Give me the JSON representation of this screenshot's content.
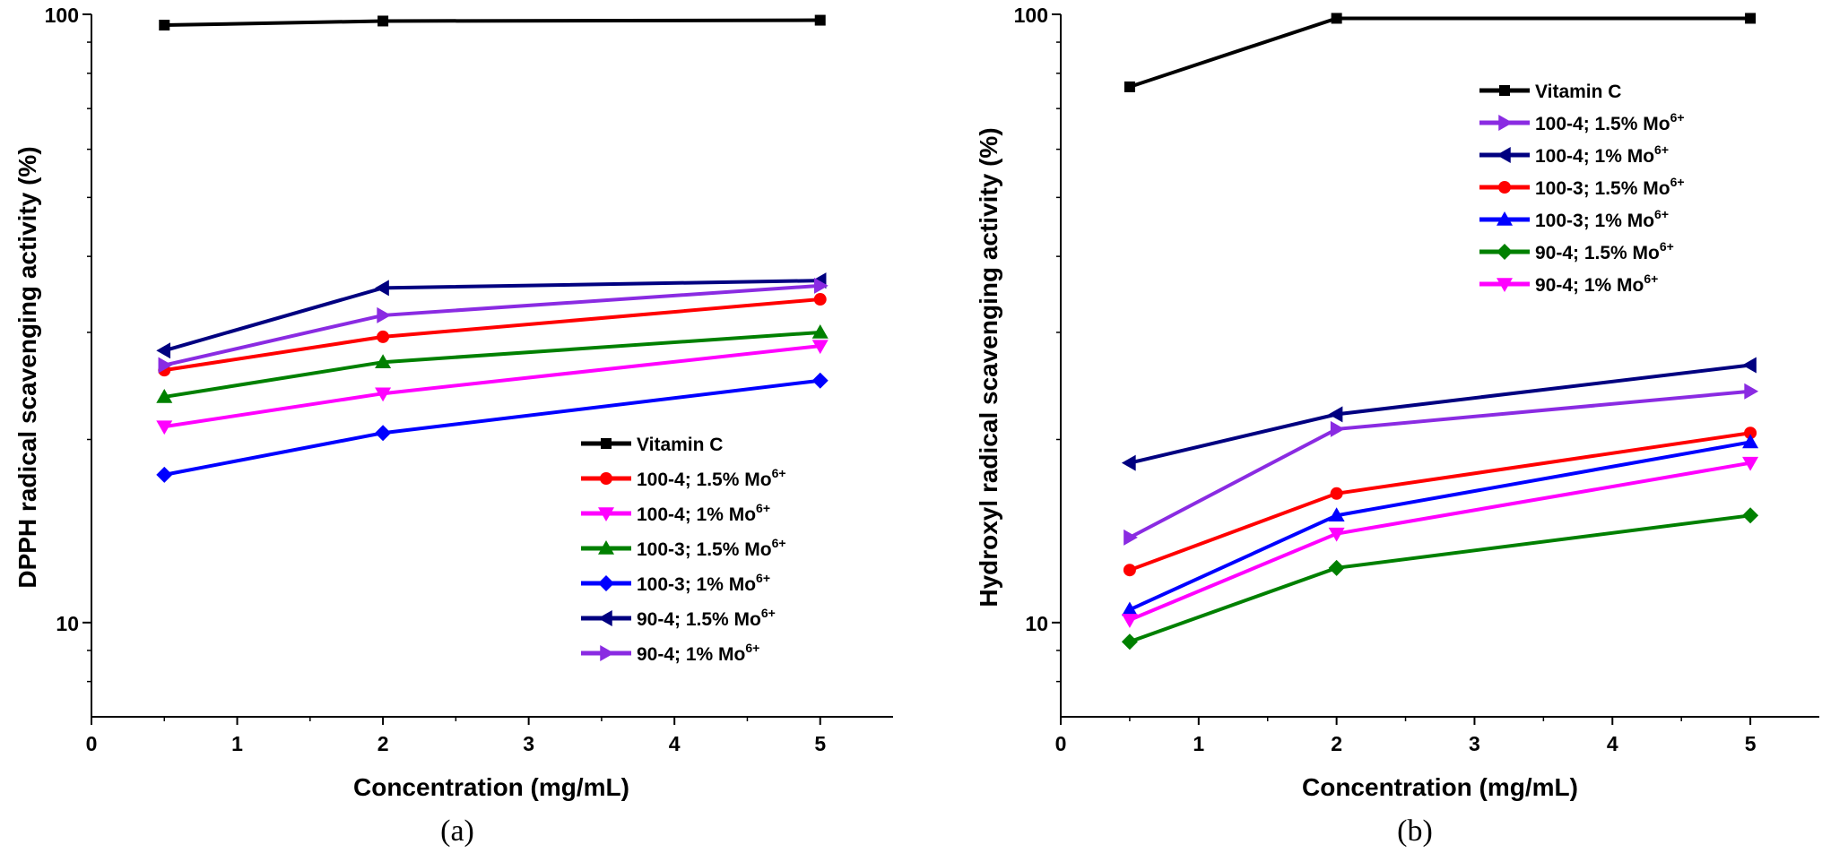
{
  "chart_data": [
    {
      "type": "line",
      "yscale": "log",
      "title": "",
      "panel_label": "(a)",
      "xlabel": "Concentration (mg/mL)",
      "ylabel": "DPPH radical scavenging activity (%)",
      "xlim": [
        0,
        5.5
      ],
      "ylim": [
        7,
        100
      ],
      "x_ticks": [
        "0",
        "1",
        "2",
        "3",
        "4",
        "5"
      ],
      "y_ticks": [
        "10",
        "100"
      ],
      "legend_position": "bottom-right",
      "x": [
        0.5,
        2,
        5
      ],
      "series": [
        {
          "name": "Vitamin C",
          "name_sup": "",
          "color": "#000000",
          "marker": "square",
          "values": [
            96,
            97.5,
            97.8
          ]
        },
        {
          "name": "100-4; 1.5% Mo",
          "name_sup": "6+",
          "color": "#ff0000",
          "marker": "circle",
          "values": [
            26,
            29.5,
            34
          ]
        },
        {
          "name": "100-4; 1% Mo",
          "name_sup": "6+",
          "color": "#ff00ff",
          "marker": "triangle-down",
          "values": [
            21,
            23.8,
            28.5
          ]
        },
        {
          "name": "100-3; 1.5% Mo",
          "name_sup": "6+",
          "color": "#008000",
          "marker": "triangle-up",
          "values": [
            23.5,
            26.8,
            30
          ]
        },
        {
          "name": "100-3; 1% Mo",
          "name_sup": "6+",
          "color": "#0000ff",
          "marker": "diamond",
          "values": [
            17.5,
            20.5,
            25
          ]
        },
        {
          "name": "90-4; 1.5% Mo",
          "name_sup": "6+",
          "color": "#000080",
          "marker": "triangle-left",
          "values": [
            28,
            35.5,
            36.5
          ]
        },
        {
          "name": "90-4; 1% Mo",
          "name_sup": "6+",
          "color": "#8a2be2",
          "marker": "triangle-right",
          "values": [
            26.5,
            32,
            35.8
          ]
        }
      ]
    },
    {
      "type": "line",
      "yscale": "log",
      "title": "",
      "panel_label": "(b)",
      "xlabel": "Concentration (mg/mL)",
      "ylabel": "Hydroxyl radical scavenging activity (%)",
      "xlim": [
        0,
        5.5
      ],
      "ylim": [
        7,
        100
      ],
      "x_ticks": [
        "0",
        "1",
        "2",
        "3",
        "4",
        "5"
      ],
      "y_ticks": [
        "10",
        "100"
      ],
      "legend_position": "top-right",
      "x": [
        0.5,
        2,
        5
      ],
      "series": [
        {
          "name": "Vitamin C",
          "name_sup": "",
          "color": "#000000",
          "marker": "square",
          "values": [
            76,
            98.5,
            98.5
          ]
        },
        {
          "name": "100-4; 1.5% Mo",
          "name_sup": "6+",
          "color": "#8a2be2",
          "marker": "triangle-right",
          "values": [
            13.8,
            20.8,
            24
          ]
        },
        {
          "name": "100-4; 1% Mo",
          "name_sup": "6+",
          "color": "#000080",
          "marker": "triangle-left",
          "values": [
            18.3,
            22,
            26.5
          ]
        },
        {
          "name": "100-3; 1.5% Mo",
          "name_sup": "6+",
          "color": "#ff0000",
          "marker": "circle",
          "values": [
            12.2,
            16.3,
            20.5
          ]
        },
        {
          "name": "100-3; 1% Mo",
          "name_sup": "6+",
          "color": "#0000ff",
          "marker": "triangle-up",
          "values": [
            10.5,
            15,
            19.8
          ]
        },
        {
          "name": "90-4; 1.5% Mo",
          "name_sup": "6+",
          "color": "#008000",
          "marker": "diamond",
          "values": [
            9.3,
            12.3,
            15
          ]
        },
        {
          "name": "90-4; 1% Mo",
          "name_sup": "6+",
          "color": "#ff00ff",
          "marker": "triangle-down",
          "values": [
            10.1,
            14,
            18.3
          ]
        }
      ]
    }
  ]
}
